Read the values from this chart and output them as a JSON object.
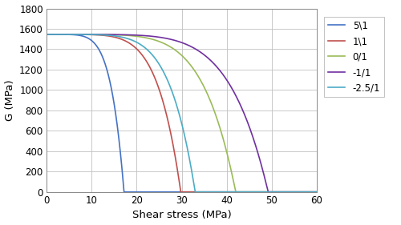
{
  "title": "",
  "xlabel": "Shear stress (MPa)",
  "ylabel": "G (MPa)",
  "xlim": [
    0,
    60
  ],
  "ylim": [
    0,
    1800
  ],
  "xticks": [
    0,
    10,
    20,
    30,
    40,
    50,
    60
  ],
  "yticks": [
    0,
    200,
    400,
    600,
    800,
    1000,
    1200,
    1400,
    1600,
    1800
  ],
  "series": [
    {
      "label": "5\\1",
      "color": "#4472C4",
      "G0": 1545,
      "tau_max": 17.2,
      "steep": 6.0
    },
    {
      "label": "1\\1",
      "color": "#C0504D",
      "G0": 1545,
      "tau_max": 29.8,
      "steep": 6.0
    },
    {
      "label": "0/1",
      "color": "#9BBB59",
      "G0": 1545,
      "tau_max": 42.0,
      "steep": 6.0
    },
    {
      "label": "-1/1",
      "color": "#7030A0",
      "G0": 1545,
      "tau_max": 49.2,
      "steep": 6.0
    },
    {
      "label": "-2.5/1",
      "color": "#4BACC6",
      "G0": 1545,
      "tau_max": 33.0,
      "steep": 6.0
    }
  ],
  "background_color": "#ffffff",
  "grid_color": "#c0c0c0",
  "figsize": [
    5.0,
    2.81
  ],
  "dpi": 100,
  "legend_fontsize": 8.5,
  "axis_fontsize": 9.5,
  "tick_fontsize": 8.5
}
